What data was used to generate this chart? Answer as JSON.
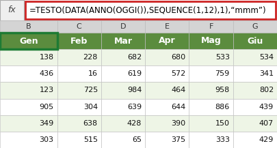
{
  "formula": "=TESTO(DATA(ANNO(OGGI()),SEQUENCE(1,12),1),“mmm”)",
  "col_letters": [
    "B",
    "C",
    "D",
    "E",
    "F",
    "G"
  ],
  "months": [
    "Gen",
    "Feb",
    "Mar",
    "Apr",
    "Mag",
    "Giu"
  ],
  "data": [
    [
      138,
      228,
      682,
      680,
      533,
      534
    ],
    [
      436,
      16,
      619,
      572,
      759,
      341
    ],
    [
      123,
      725,
      984,
      464,
      958,
      802
    ],
    [
      905,
      304,
      639,
      644,
      886,
      439
    ],
    [
      349,
      638,
      428,
      390,
      150,
      407
    ],
    [
      303,
      515,
      65,
      375,
      333,
      429
    ]
  ],
  "header_bg": "#5B8C3E",
  "header_fg": "#FFFFFF",
  "col_letter_bg": "#D4D4D4",
  "col_letter_fg": "#333333",
  "row_even_bg": "#EEF5E6",
  "row_odd_bg": "#FFFFFF",
  "formula_bar_bg": "#FFFFFF",
  "formula_bar_border": "#CC2222",
  "formula_bar_text": "#000000",
  "fx_bg": "#EFEFEF",
  "fx_border": "#AAAAAA",
  "outer_bg": "#FFFFFF",
  "grid_color": "#BBBBBB",
  "selected_cell_border": "#1E7B34",
  "figsize": [
    4.05,
    2.17
  ],
  "dpi": 100
}
